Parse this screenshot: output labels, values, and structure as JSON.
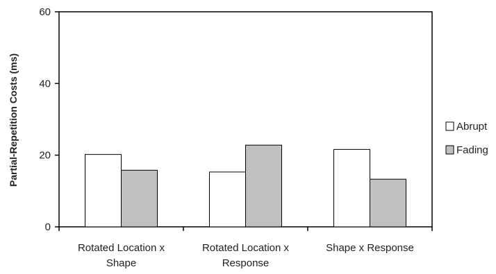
{
  "chart_data": {
    "type": "bar",
    "title": "",
    "xlabel": "",
    "ylabel": "Partial-Repetition Costs (ms)",
    "ylim": [
      0,
      60
    ],
    "yticks": [
      0,
      20,
      40,
      60
    ],
    "categories": [
      [
        "Rotated Location x",
        "Shape"
      ],
      [
        "Rotated Location x",
        "Response"
      ],
      [
        "Shape x Response"
      ]
    ],
    "series": [
      {
        "name": "Abrupt",
        "color": "#ffffff",
        "values": [
          20.2,
          15.3,
          21.6
        ]
      },
      {
        "name": "Fading",
        "color": "#c0c0c0",
        "values": [
          15.8,
          22.8,
          13.3
        ]
      }
    ],
    "grid": false,
    "legend_position": "right"
  }
}
